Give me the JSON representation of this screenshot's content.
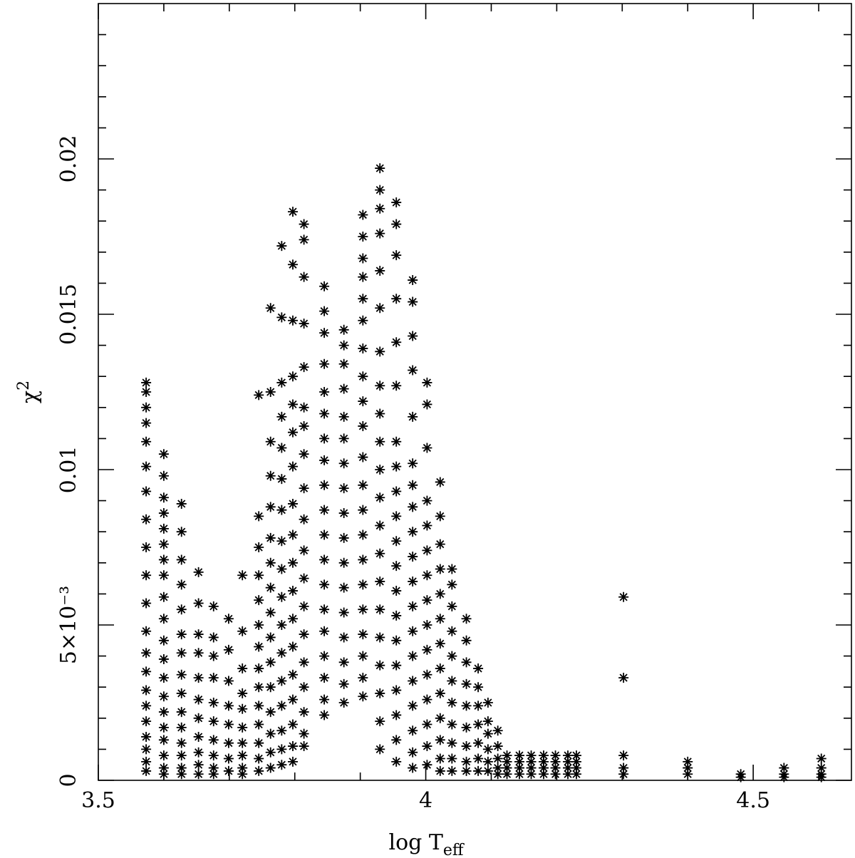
{
  "chart_data": {
    "type": "scatter",
    "xlabel": "log T",
    "xlabel_subscript": "eff",
    "ylabel": "χ",
    "ylabel_superscript": "2",
    "xlim": [
      3.5,
      4.65
    ],
    "ylim": [
      0,
      0.025
    ],
    "xticks": [
      3.5,
      4,
      4.5
    ],
    "xticks_minor": [
      3.6,
      3.7,
      3.8,
      3.9,
      4.1,
      4.2,
      4.3,
      4.4,
      4.6
    ],
    "yticks": [
      0,
      {
        "value": 0.005,
        "label": "5×10⁻³"
      },
      0.01,
      0.015,
      0.02
    ],
    "yticks_minor": [
      0.001,
      0.002,
      0.003,
      0.004,
      0.006,
      0.007,
      0.008,
      0.009,
      0.011,
      0.012,
      0.013,
      0.014,
      0.016,
      0.017,
      0.018,
      0.019,
      0.021,
      0.022,
      0.023,
      0.024
    ],
    "color": "#000000",
    "x": [
      3.573,
      3.573,
      3.573,
      3.573,
      3.573,
      3.573,
      3.573,
      3.573,
      3.573,
      3.573,
      3.573,
      3.573,
      3.573,
      3.573,
      3.573,
      3.573,
      3.573,
      3.573,
      3.573,
      3.573,
      3.573,
      3.6,
      3.6,
      3.6,
      3.6,
      3.6,
      3.6,
      3.6,
      3.6,
      3.6,
      3.6,
      3.6,
      3.6,
      3.6,
      3.6,
      3.6,
      3.6,
      3.6,
      3.6,
      3.6,
      3.6,
      3.627,
      3.627,
      3.627,
      3.627,
      3.627,
      3.627,
      3.627,
      3.627,
      3.627,
      3.627,
      3.627,
      3.627,
      3.627,
      3.627,
      3.627,
      3.653,
      3.653,
      3.653,
      3.653,
      3.653,
      3.653,
      3.653,
      3.653,
      3.653,
      3.653,
      3.653,
      3.676,
      3.676,
      3.676,
      3.676,
      3.676,
      3.676,
      3.676,
      3.676,
      3.676,
      3.676,
      3.699,
      3.699,
      3.699,
      3.699,
      3.699,
      3.699,
      3.699,
      3.699,
      3.72,
      3.72,
      3.72,
      3.72,
      3.72,
      3.72,
      3.72,
      3.72,
      3.72,
      3.72,
      3.745,
      3.745,
      3.745,
      3.745,
      3.745,
      3.745,
      3.745,
      3.745,
      3.745,
      3.745,
      3.745,
      3.745,
      3.745,
      3.745,
      3.763,
      3.763,
      3.763,
      3.763,
      3.763,
      3.763,
      3.763,
      3.763,
      3.763,
      3.763,
      3.763,
      3.763,
      3.763,
      3.763,
      3.763,
      3.763,
      3.78,
      3.78,
      3.78,
      3.78,
      3.78,
      3.78,
      3.78,
      3.78,
      3.78,
      3.78,
      3.78,
      3.78,
      3.78,
      3.78,
      3.78,
      3.78,
      3.78,
      3.797,
      3.797,
      3.797,
      3.797,
      3.797,
      3.797,
      3.797,
      3.797,
      3.797,
      3.797,
      3.797,
      3.797,
      3.797,
      3.797,
      3.797,
      3.797,
      3.797,
      3.797,
      3.814,
      3.814,
      3.814,
      3.814,
      3.814,
      3.814,
      3.814,
      3.814,
      3.814,
      3.814,
      3.814,
      3.814,
      3.814,
      3.814,
      3.814,
      3.814,
      3.814,
      3.814,
      3.814,
      3.845,
      3.845,
      3.845,
      3.845,
      3.845,
      3.845,
      3.845,
      3.845,
      3.845,
      3.845,
      3.845,
      3.845,
      3.845,
      3.845,
      3.845,
      3.845,
      3.845,
      3.845,
      3.845,
      3.875,
      3.875,
      3.875,
      3.875,
      3.875,
      3.875,
      3.875,
      3.875,
      3.875,
      3.875,
      3.875,
      3.875,
      3.875,
      3.875,
      3.875,
      3.875,
      3.875,
      3.904,
      3.904,
      3.904,
      3.904,
      3.904,
      3.904,
      3.904,
      3.904,
      3.904,
      3.904,
      3.904,
      3.904,
      3.904,
      3.904,
      3.904,
      3.904,
      3.904,
      3.904,
      3.904,
      3.904,
      3.904,
      3.93,
      3.93,
      3.93,
      3.93,
      3.93,
      3.93,
      3.93,
      3.93,
      3.93,
      3.93,
      3.93,
      3.93,
      3.93,
      3.93,
      3.93,
      3.93,
      3.93,
      3.93,
      3.93,
      3.93,
      3.93,
      3.955,
      3.955,
      3.955,
      3.955,
      3.955,
      3.955,
      3.955,
      3.955,
      3.955,
      3.955,
      3.955,
      3.955,
      3.955,
      3.955,
      3.955,
      3.955,
      3.955,
      3.955,
      3.955,
      3.955,
      3.98,
      3.98,
      3.98,
      3.98,
      3.98,
      3.98,
      3.98,
      3.98,
      3.98,
      3.98,
      3.98,
      3.98,
      3.98,
      3.98,
      3.98,
      3.98,
      3.98,
      3.98,
      3.98,
      4.002,
      4.002,
      4.002,
      4.002,
      4.002,
      4.002,
      4.002,
      4.002,
      4.002,
      4.002,
      4.002,
      4.002,
      4.002,
      4.002,
      4.002,
      4.022,
      4.022,
      4.022,
      4.022,
      4.022,
      4.022,
      4.022,
      4.022,
      4.022,
      4.022,
      4.022,
      4.022,
      4.022,
      4.04,
      4.04,
      4.04,
      4.04,
      4.04,
      4.04,
      4.04,
      4.04,
      4.04,
      4.04,
      4.04,
      4.062,
      4.062,
      4.062,
      4.062,
      4.062,
      4.062,
      4.062,
      4.062,
      4.062,
      4.08,
      4.08,
      4.08,
      4.08,
      4.08,
      4.08,
      4.08,
      4.095,
      4.095,
      4.095,
      4.095,
      4.095,
      4.095,
      4.11,
      4.11,
      4.11,
      4.11,
      4.11,
      4.124,
      4.124,
      4.124,
      4.124,
      4.143,
      4.143,
      4.143,
      4.143,
      4.161,
      4.161,
      4.161,
      4.161,
      4.18,
      4.18,
      4.18,
      4.18,
      4.198,
      4.198,
      4.198,
      4.198,
      4.217,
      4.217,
      4.217,
      4.217,
      4.23,
      4.23,
      4.23,
      4.23,
      4.302,
      4.302,
      4.302,
      4.302,
      4.302,
      4.4,
      4.4,
      4.4,
      4.481,
      4.481,
      4.547,
      4.547,
      4.547,
      4.604,
      4.604,
      4.604,
      4.604
    ],
    "values": [
      0.0128,
      0.0125,
      0.012,
      0.0115,
      0.0109,
      0.0101,
      0.0093,
      0.0084,
      0.0075,
      0.0066,
      0.0057,
      0.0048,
      0.0041,
      0.0035,
      0.0029,
      0.0024,
      0.0019,
      0.0014,
      0.001,
      0.0006,
      0.0003,
      0.0105,
      0.0098,
      0.0091,
      0.0086,
      0.0081,
      0.0076,
      0.0071,
      0.0066,
      0.0059,
      0.0052,
      0.0045,
      0.0039,
      0.0033,
      0.0027,
      0.0022,
      0.0017,
      0.0013,
      0.0008,
      0.0004,
      0.0002,
      0.0089,
      0.008,
      0.0071,
      0.0063,
      0.0055,
      0.0047,
      0.0041,
      0.0034,
      0.0028,
      0.0022,
      0.0017,
      0.0012,
      0.0008,
      0.0004,
      0.0002,
      0.0067,
      0.0057,
      0.0047,
      0.0041,
      0.0033,
      0.0026,
      0.002,
      0.0014,
      0.0009,
      0.0005,
      0.0002,
      0.0056,
      0.0046,
      0.004,
      0.0033,
      0.0025,
      0.0019,
      0.0013,
      0.0008,
      0.0004,
      0.0002,
      0.0052,
      0.0042,
      0.0032,
      0.0024,
      0.0018,
      0.0012,
      0.0007,
      0.0003,
      0.0066,
      0.0048,
      0.0036,
      0.0028,
      0.0023,
      0.0017,
      0.0012,
      0.0008,
      0.0004,
      0.0002,
      0.0124,
      0.0085,
      0.0075,
      0.0066,
      0.0058,
      0.005,
      0.0043,
      0.0036,
      0.003,
      0.0024,
      0.0018,
      0.0012,
      0.0007,
      0.0003,
      0.0152,
      0.0125,
      0.0109,
      0.0098,
      0.0088,
      0.0078,
      0.007,
      0.0062,
      0.0054,
      0.0046,
      0.0038,
      0.003,
      0.0022,
      0.0015,
      0.0009,
      0.0004,
      0.0172,
      0.0149,
      0.0128,
      0.0117,
      0.0107,
      0.0097,
      0.0087,
      0.0077,
      0.0068,
      0.0059,
      0.005,
      0.0041,
      0.0032,
      0.0024,
      0.0016,
      0.001,
      0.0005,
      0.0183,
      0.0166,
      0.0148,
      0.013,
      0.0121,
      0.0112,
      0.0101,
      0.0089,
      0.0079,
      0.007,
      0.0061,
      0.0052,
      0.0043,
      0.0034,
      0.0026,
      0.0018,
      0.0011,
      0.0006,
      0.0179,
      0.0174,
      0.0162,
      0.0147,
      0.0133,
      0.012,
      0.0114,
      0.0105,
      0.0094,
      0.0084,
      0.0074,
      0.0065,
      0.0056,
      0.0047,
      0.0038,
      0.003,
      0.0022,
      0.0015,
      0.0011,
      0.0159,
      0.0151,
      0.0144,
      0.0134,
      0.0125,
      0.0118,
      0.011,
      0.0103,
      0.0095,
      0.0087,
      0.0079,
      0.0071,
      0.0063,
      0.0055,
      0.0048,
      0.004,
      0.0033,
      0.0026,
      0.0021,
      0.0145,
      0.014,
      0.0134,
      0.0126,
      0.0117,
      0.011,
      0.0102,
      0.0094,
      0.0086,
      0.0078,
      0.007,
      0.0062,
      0.0054,
      0.0046,
      0.0038,
      0.0031,
      0.0025,
      0.0182,
      0.0175,
      0.0168,
      0.0162,
      0.0155,
      0.0148,
      0.0139,
      0.013,
      0.0122,
      0.0114,
      0.0104,
      0.0095,
      0.0087,
      0.0079,
      0.0071,
      0.0063,
      0.0055,
      0.0047,
      0.004,
      0.0033,
      0.0027,
      0.0197,
      0.019,
      0.0184,
      0.0176,
      0.0164,
      0.0152,
      0.0138,
      0.0127,
      0.0118,
      0.0109,
      0.01,
      0.0091,
      0.0082,
      0.0073,
      0.0064,
      0.0055,
      0.0046,
      0.0037,
      0.0028,
      0.0019,
      0.001,
      0.0186,
      0.0179,
      0.0169,
      0.0155,
      0.0141,
      0.0127,
      0.0109,
      0.0101,
      0.0093,
      0.0085,
      0.0077,
      0.0069,
      0.0061,
      0.0053,
      0.0045,
      0.0037,
      0.0029,
      0.0021,
      0.0013,
      0.0006,
      0.0161,
      0.0154,
      0.0143,
      0.0132,
      0.0117,
      0.0102,
      0.0095,
      0.0088,
      0.008,
      0.0072,
      0.0064,
      0.0056,
      0.0048,
      0.004,
      0.0032,
      0.0024,
      0.0016,
      0.0009,
      0.0004,
      0.0128,
      0.0121,
      0.0107,
      0.009,
      0.0082,
      0.0074,
      0.0066,
      0.0058,
      0.005,
      0.0042,
      0.0034,
      0.0026,
      0.0018,
      0.0011,
      0.0005,
      0.0096,
      0.0085,
      0.0076,
      0.0068,
      0.006,
      0.0052,
      0.0044,
      0.0036,
      0.0028,
      0.002,
      0.0013,
      0.0007,
      0.0003,
      0.0068,
      0.0063,
      0.0056,
      0.0048,
      0.004,
      0.0032,
      0.0025,
      0.0018,
      0.0012,
      0.0007,
      0.0003,
      0.0052,
      0.0045,
      0.0038,
      0.0031,
      0.0024,
      0.0017,
      0.0011,
      0.0006,
      0.0003,
      0.0036,
      0.003,
      0.0024,
      0.0018,
      0.0012,
      0.0007,
      0.0003,
      0.0025,
      0.0019,
      0.0015,
      0.001,
      0.0006,
      0.0003,
      0.0016,
      0.0011,
      0.0007,
      0.0004,
      0.0002,
      0.0008,
      0.0006,
      0.0004,
      0.0002,
      0.0008,
      0.0006,
      0.0004,
      0.0002,
      0.0008,
      0.0006,
      0.0004,
      0.0002,
      0.0008,
      0.0006,
      0.0004,
      0.0002,
      0.0008,
      0.0006,
      0.0004,
      0.0002,
      0.0008,
      0.0006,
      0.0004,
      0.0002,
      0.0008,
      0.0006,
      0.0004,
      0.0002,
      0.0059,
      0.0033,
      0.0008,
      0.0004,
      0.0002,
      0.0006,
      0.0004,
      0.0002,
      0.0002,
      0.0001,
      0.0004,
      0.0002,
      0.0001,
      0.0007,
      0.0004,
      0.0002,
      0.0001
    ]
  }
}
